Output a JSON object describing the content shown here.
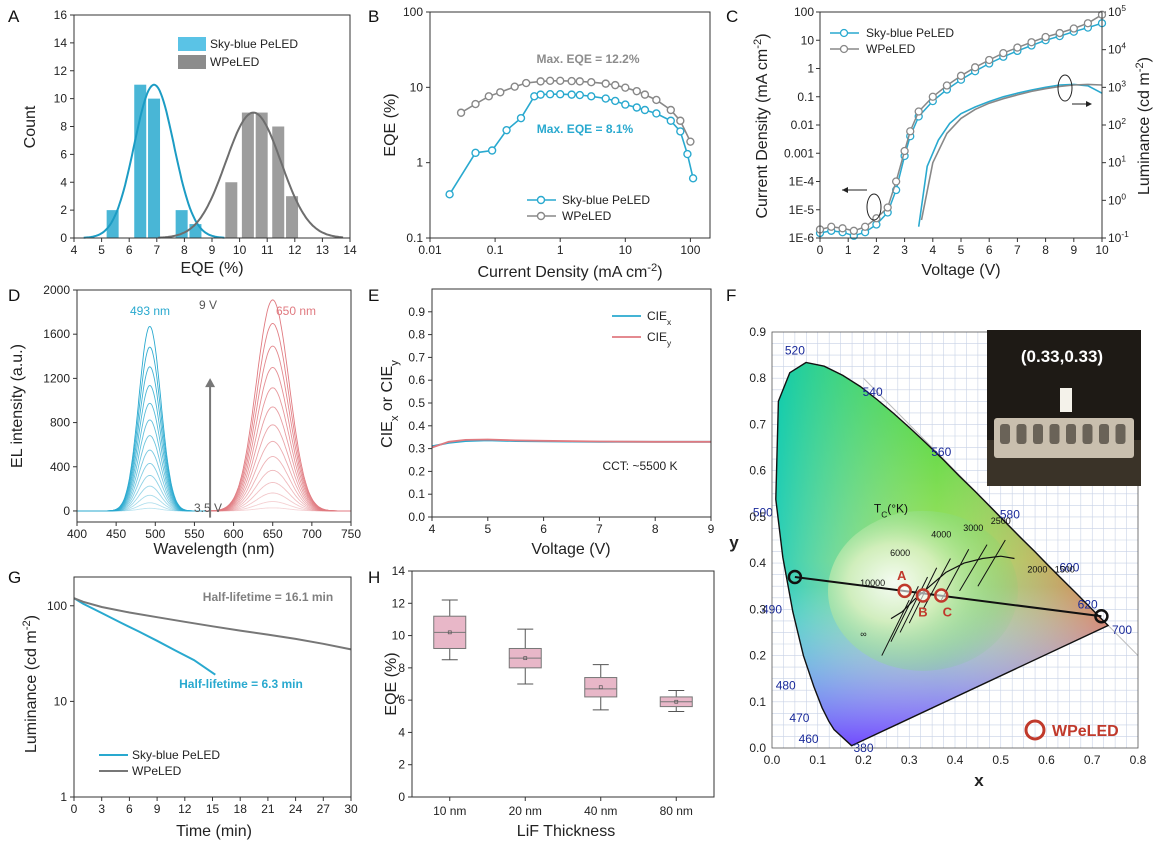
{
  "colors": {
    "blue": "#29a9cf",
    "gray": "#8c8c8c",
    "red": "#c0392b",
    "pink": "#e07a80",
    "box": "#e8b7c8"
  },
  "panels": {
    "A": {
      "label": "A",
      "chart_data": {
        "type": "bar",
        "xlabel": "EQE (%)",
        "ylabel": "Count",
        "xlim": [
          4,
          14
        ],
        "ylim": [
          0,
          16
        ],
        "xticks": [
          "4",
          "5",
          "6",
          "7",
          "8",
          "9",
          "10",
          "11",
          "12",
          "13",
          "14"
        ],
        "yticks": [
          "0",
          "2",
          "4",
          "6",
          "8",
          "10",
          "12",
          "14",
          "16"
        ],
        "series": [
          {
            "name": "Sky-blue PeLED",
            "x": [
              5.4,
              6.4,
              6.9,
              7.9,
              8.4
            ],
            "values": [
              2,
              11,
              10,
              2,
              1
            ],
            "fit": {
              "mu": 6.9,
              "sigma": 0.72,
              "amp": 11
            }
          },
          {
            "name": "WPeLED",
            "x": [
              9.7,
              10.3,
              10.8,
              11.4,
              11.9
            ],
            "values": [
              4,
              9,
              9,
              8,
              3
            ],
            "fit": {
              "mu": 10.5,
              "sigma": 1.0,
              "amp": 9
            }
          }
        ]
      }
    },
    "B": {
      "label": "B",
      "chart_data": {
        "type": "line",
        "xlabel": "Current Density (mA cm",
        "xlabel_sup": "-2",
        "xlabel_end": ")",
        "ylabel": "EQE (%)",
        "xlim": [
          0.01,
          200
        ],
        "ylim": [
          0.1,
          100
        ],
        "log_x": true,
        "log_y": true,
        "xticks": [
          "0.01",
          "0.1",
          "1",
          "10",
          "100"
        ],
        "yticks": [
          "0.1",
          "1",
          "10",
          "100"
        ],
        "annotations": [
          "Max. EQE = 12.2%",
          "Max. EQE = 8.1%"
        ],
        "series": [
          {
            "name": "Sky-blue PeLED",
            "x": [
              0.02,
              0.05,
              0.09,
              0.15,
              0.25,
              0.4,
              0.5,
              0.7,
              1,
              1.5,
              2,
              3,
              5,
              7,
              10,
              15,
              20,
              30,
              50,
              70,
              90,
              110
            ],
            "values": [
              0.38,
              1.35,
              1.45,
              2.7,
              3.9,
              7.6,
              8.0,
              8.1,
              8.1,
              8.0,
              7.9,
              7.6,
              7.1,
              6.6,
              5.9,
              5.4,
              5.0,
              4.5,
              3.6,
              2.6,
              1.3,
              0.62
            ]
          },
          {
            "name": "WPeLED",
            "x": [
              0.03,
              0.05,
              0.08,
              0.12,
              0.2,
              0.3,
              0.5,
              0.7,
              1,
              1.5,
              2,
              3,
              5,
              7,
              10,
              15,
              20,
              30,
              50,
              70,
              100
            ],
            "values": [
              4.6,
              6.0,
              7.6,
              8.6,
              10.2,
              11.4,
              12.0,
              12.2,
              12.2,
              12.1,
              12.0,
              11.7,
              11.2,
              10.7,
              9.9,
              8.9,
              8.0,
              6.8,
              5.0,
              3.6,
              1.9
            ]
          }
        ]
      }
    },
    "C": {
      "label": "C",
      "chart_data": {
        "type": "line",
        "xlabel": "Voltage (V)",
        "ylabel": "Current Density (mA cm",
        "ylabel_sup": "-2",
        "ylabel_end": ")",
        "y2label": "Luminance (cd m",
        "y2label_sup": "-2",
        "y2label_end": ")",
        "xlim": [
          0,
          10
        ],
        "ylim": [
          1e-06,
          100
        ],
        "y2lim": [
          0.1,
          100000
        ],
        "xticks": [
          "0",
          "1",
          "2",
          "3",
          "4",
          "5",
          "6",
          "7",
          "8",
          "9",
          "10"
        ],
        "yticks": [
          "1E-6",
          "1E-5",
          "1E-4",
          "0.001",
          "0.01",
          "0.1",
          "1",
          "10",
          "100"
        ],
        "y2ticks_base": [
          "10",
          "10",
          "10",
          "10",
          "10",
          "10",
          "10"
        ],
        "y2ticks_exp": [
          "-1",
          "0",
          "1",
          "2",
          "3",
          "4",
          "5"
        ],
        "series": [
          {
            "name": "Sky-blue PeLED",
            "x": [
              0,
              0.4,
              0.8,
              1.2,
              1.6,
              2,
              2.4,
              2.7,
              3,
              3.2,
              3.5,
              4,
              4.5,
              5,
              5.5,
              6,
              6.5,
              7,
              7.5,
              8,
              8.5,
              9,
              9.5,
              10
            ],
            "values": [
              1.5e-06,
              1.8e-06,
              1.6e-06,
              1.2e-06,
              1.6e-06,
              3e-06,
              8e-06,
              5e-05,
              0.0008,
              0.004,
              0.02,
              0.07,
              0.18,
              0.4,
              0.8,
              1.5,
              2.6,
              4.2,
              6.5,
              10,
              14,
              20,
              28,
              40
            ],
            "lum_x": [
              3.5,
              3.8,
              4.2,
              4.6,
              5,
              5.5,
              6,
              6.5,
              7,
              7.5,
              8,
              8.5,
              9,
              9.5,
              10
            ],
            "lum": [
              0.2,
              8,
              40,
              110,
              200,
              300,
              420,
              560,
              700,
              850,
              1000,
              1150,
              1200,
              1100,
              700
            ]
          },
          {
            "name": "WPeLED",
            "x": [
              0,
              0.4,
              0.8,
              1.2,
              1.6,
              2,
              2.4,
              2.7,
              3,
              3.2,
              3.5,
              4,
              4.5,
              5,
              5.5,
              6,
              6.5,
              7,
              7.5,
              8,
              8.5,
              9,
              9.5,
              10
            ],
            "values": [
              2e-06,
              2.5e-06,
              2.2e-06,
              1.8e-06,
              2.5e-06,
              5e-06,
              1.2e-05,
              0.0001,
              0.0012,
              0.006,
              0.03,
              0.1,
              0.25,
              0.55,
              1.1,
              2,
              3.5,
              5.5,
              8.5,
              13,
              18,
              26,
              40,
              80
            ],
            "lum_x": [
              3.6,
              4,
              4.5,
              5,
              5.5,
              6,
              6.5,
              7,
              7.5,
              8,
              8.5,
              9,
              9.5,
              10
            ],
            "lum": [
              0.3,
              10,
              60,
              150,
              260,
              380,
              500,
              630,
              780,
              920,
              1050,
              1150,
              1200,
              1150
            ]
          }
        ]
      }
    },
    "D": {
      "label": "D",
      "chart_data": {
        "type": "line",
        "xlabel": "Wavelength (nm)",
        "ylabel": "EL intensity (a.u.)",
        "xlim": [
          400,
          750
        ],
        "ylim": [
          -100,
          2000
        ],
        "xticks": [
          "400",
          "450",
          "500",
          "550",
          "600",
          "650",
          "700",
          "750"
        ],
        "yticks": [
          "0",
          "400",
          "800",
          "1200",
          "1600",
          "2000"
        ],
        "annotations": [
          "493 nm",
          "650 nm",
          "9 V",
          "3.5 V"
        ],
        "peaks": [
          {
            "center": 493,
            "width": 14,
            "max": 1670
          },
          {
            "center": 650,
            "width": 21,
            "max": 1910
          }
        ]
      }
    },
    "E": {
      "label": "E",
      "chart_data": {
        "type": "line",
        "xlabel": "Voltage (V)",
        "ylabel": "CIE",
        "ylabel_sub1": "x",
        "ylabel_mid": " or CIE",
        "ylabel_sub2": "y",
        "xlim": [
          4,
          9
        ],
        "ylim": [
          0,
          1
        ],
        "xticks": [
          "4",
          "5",
          "6",
          "7",
          "8",
          "9"
        ],
        "yticks": [
          "0.0",
          "0.1",
          "0.2",
          "0.3",
          "0.4",
          "0.5",
          "0.6",
          "0.7",
          "0.8",
          "0.9"
        ],
        "annotation": "CCT: ~5500 K",
        "series": [
          {
            "name": "CIE",
            "sub": "x",
            "x": [
              4,
              4.3,
              4.6,
              5,
              5.5,
              6,
              7,
              8,
              9
            ],
            "values": [
              0.31,
              0.325,
              0.333,
              0.336,
              0.333,
              0.332,
              0.33,
              0.33,
              0.33
            ]
          },
          {
            "name": "CIE",
            "sub": "y",
            "x": [
              4,
              4.3,
              4.6,
              5,
              5.5,
              6,
              7,
              8,
              9
            ],
            "values": [
              0.305,
              0.33,
              0.338,
              0.34,
              0.336,
              0.334,
              0.331,
              0.33,
              0.33
            ]
          }
        ]
      }
    },
    "F": {
      "label": "F",
      "chart_data": {
        "type": "scatter",
        "xlabel": "x",
        "ylabel": "y",
        "xlim": [
          0,
          0.8
        ],
        "ylim": [
          0,
          0.9
        ],
        "xticks": [
          "0.0",
          "0.1",
          "0.2",
          "0.3",
          "0.4",
          "0.5",
          "0.6",
          "0.7",
          "0.8"
        ],
        "yticks": [
          "0.0",
          "0.1",
          "0.2",
          "0.3",
          "0.4",
          "0.5",
          "0.6",
          "0.7",
          "0.8",
          "0.9"
        ],
        "wavelength_labels": [
          "380",
          "460",
          "470",
          "480",
          "490",
          "500",
          "520",
          "540",
          "560",
          "580",
          "600",
          "620",
          "700"
        ],
        "temperature_labels": [
          "10000",
          "6000",
          "4000",
          "3000",
          "2500",
          "2000",
          "1500",
          "∞"
        ],
        "tc_label": "T",
        "tc_sub": "C",
        "tc_unit": "(°K)",
        "points": [
          {
            "label": "",
            "x": 0.05,
            "y": 0.37
          },
          {
            "label": "A",
            "x": 0.29,
            "y": 0.34
          },
          {
            "label": "B",
            "x": 0.33,
            "y": 0.33
          },
          {
            "label": "C",
            "x": 0.37,
            "y": 0.33
          },
          {
            "label": "",
            "x": 0.72,
            "y": 0.285
          }
        ],
        "inset_text": "(0.33,0.33)",
        "legend": "WPeLED"
      }
    },
    "G": {
      "label": "G",
      "chart_data": {
        "type": "line",
        "xlabel": "Time (min)",
        "ylabel": "Luminance (cd m",
        "ylabel_sup": "-2",
        "ylabel_end": ")",
        "xlim": [
          0,
          30
        ],
        "ylim": [
          1,
          200
        ],
        "log_y": true,
        "xticks": [
          "0",
          "3",
          "6",
          "9",
          "12",
          "15",
          "18",
          "21",
          "24",
          "27",
          "30"
        ],
        "yticks": [
          "1",
          "10",
          "100"
        ],
        "annotations": [
          "Half-lifetime = 16.1 min",
          "Half-lifetime = 6.3 min"
        ],
        "series": [
          {
            "name": "Sky-blue PeLED",
            "x": [
              0,
              1,
              3,
              5,
              7,
              9,
              11,
              13,
              15.3
            ],
            "values": [
              120,
              105,
              84,
              67,
              54,
              43,
              34,
              27,
              19
            ]
          },
          {
            "name": "WPeLED",
            "x": [
              0,
              1,
              3,
              6,
              9,
              12,
              15,
              18,
              21,
              24,
              27,
              30
            ],
            "values": [
              120,
              110,
              97,
              85,
              76,
              68,
              61,
              55,
              50,
              45,
              40,
              35
            ]
          }
        ]
      }
    },
    "H": {
      "label": "H",
      "chart_data": {
        "type": "box",
        "xlabel": "LiF Thickness",
        "ylabel": "EQE (%)",
        "ylim": [
          0,
          14
        ],
        "yticks": [
          "0",
          "2",
          "4",
          "6",
          "8",
          "10",
          "12",
          "14"
        ],
        "categories": [
          "10 nm",
          "20 nm",
          "40 nm",
          "80 nm"
        ],
        "boxes": [
          {
            "min": 8.5,
            "q1": 9.2,
            "median": 10.2,
            "q3": 11.2,
            "max": 12.2,
            "mean": 10.2
          },
          {
            "min": 7.0,
            "q1": 8.0,
            "median": 8.6,
            "q3": 9.2,
            "max": 10.4,
            "mean": 8.6
          },
          {
            "min": 5.4,
            "q1": 6.2,
            "median": 6.7,
            "q3": 7.4,
            "max": 8.2,
            "mean": 6.8
          },
          {
            "min": 5.3,
            "q1": 5.6,
            "median": 5.9,
            "q3": 6.2,
            "max": 6.6,
            "mean": 5.9
          }
        ]
      }
    }
  }
}
